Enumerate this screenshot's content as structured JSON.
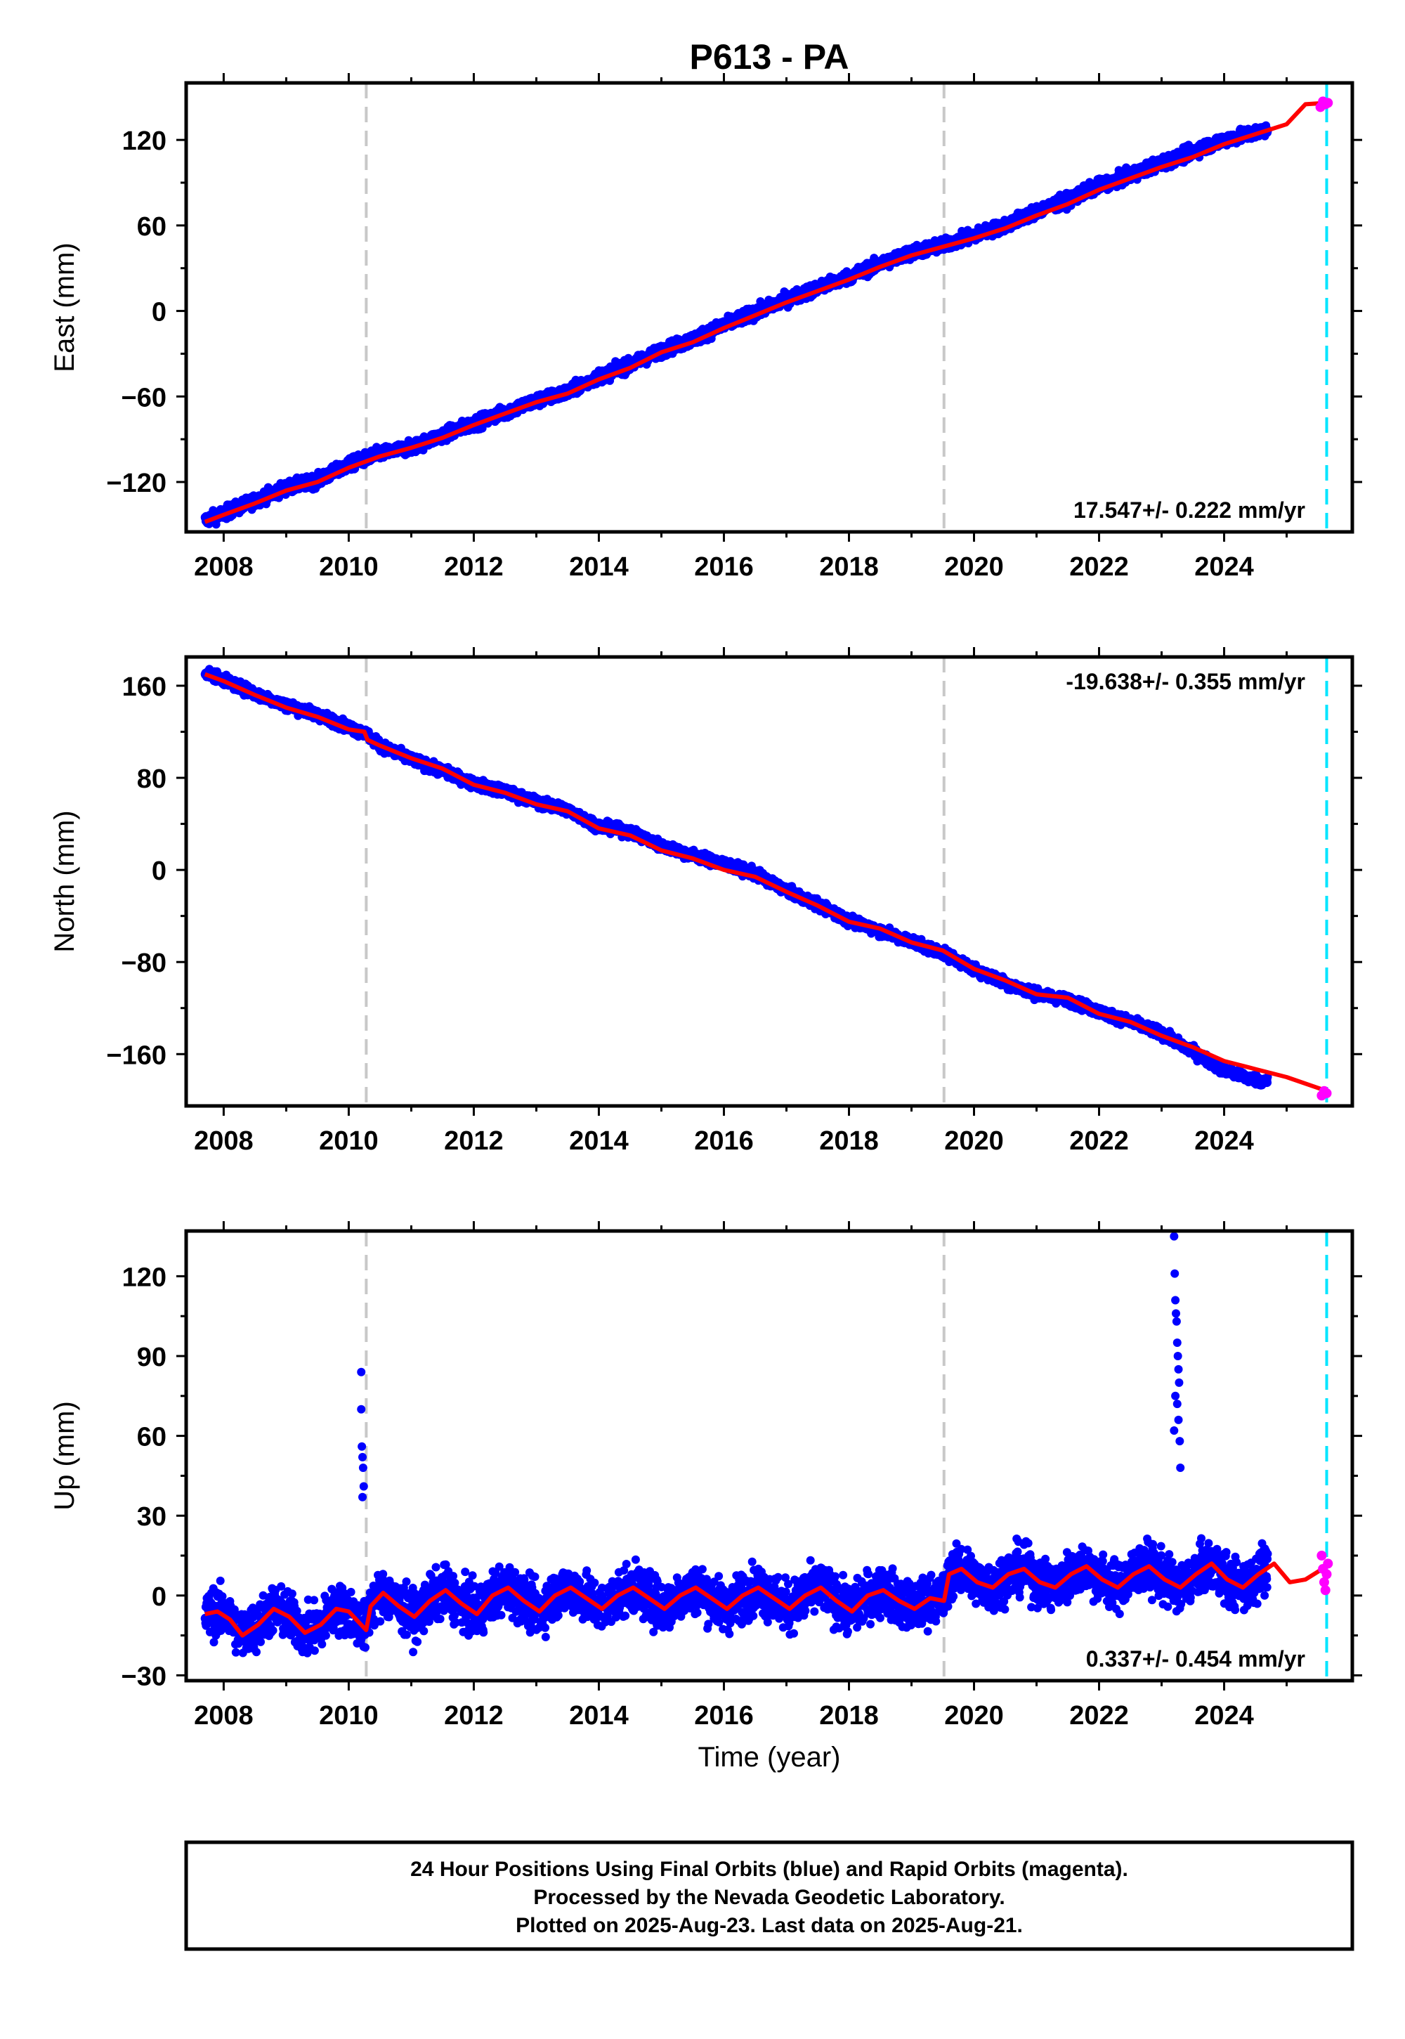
{
  "figure_title": "P613 - PA",
  "colors": {
    "final_orbits": "#0000ff",
    "rapid_orbits": "#ff00ff",
    "model": "#ff0000",
    "event_line": "#c8c8c8",
    "last_data_line": "#00e5ff",
    "frame": "#000000"
  },
  "chart_data": [
    {
      "type": "scatter",
      "component": "east",
      "ylabel": "East (mm)",
      "xlabel": "",
      "xlim": [
        2007.4,
        2026.05
      ],
      "ylim": [
        -155,
        160
      ],
      "yticks": [
        -120,
        -60,
        0,
        60,
        120
      ],
      "xticks": [
        2008,
        2010,
        2012,
        2014,
        2016,
        2018,
        2020,
        2022,
        2024
      ],
      "xtick_labels": [
        "2008",
        "2010",
        "2012",
        "2014",
        "2016",
        "2018",
        "2020",
        "2022",
        "2024"
      ],
      "rate_label": "17.547+/- 0.222 mm/yr",
      "rate_position": "bottom-right",
      "grid": false,
      "event_lines": [
        2010.28,
        2019.52
      ],
      "last_data_line": 2025.64,
      "final_orbit_data": {
        "x": [
          2007.7,
          2008.0,
          2008.5,
          2009.0,
          2009.5,
          2010.0,
          2010.25,
          2010.5,
          2011.0,
          2011.5,
          2012.0,
          2012.5,
          2013.0,
          2013.5,
          2014.0,
          2014.5,
          2015.0,
          2015.5,
          2016.0,
          2016.5,
          2017.0,
          2017.5,
          2018.0,
          2018.5,
          2019.0,
          2019.5,
          2020.0,
          2020.5,
          2021.0,
          2021.5,
          2022.0,
          2022.5,
          2023.0,
          2023.3,
          2023.5,
          2024.0,
          2024.4,
          2024.7
        ],
        "y": [
          -147,
          -142,
          -133,
          -124,
          -119,
          -108,
          -104,
          -100,
          -96,
          -87,
          -79,
          -71,
          -63,
          -57,
          -46,
          -38,
          -28,
          -20,
          -10,
          -1,
          8,
          16,
          24,
          33,
          41,
          46,
          53,
          60,
          70,
          78,
          88,
          95,
          104,
          108,
          112,
          120,
          124,
          127
        ]
      },
      "rapid_orbit_data": {
        "x": [
          2025.54,
          2025.58,
          2025.62,
          2025.66
        ],
        "y": [
          143,
          147,
          145,
          146
        ]
      },
      "model_curve": {
        "x": [
          2007.7,
          2008.0,
          2008.5,
          2009.0,
          2009.5,
          2010.0,
          2010.25,
          2010.5,
          2011.0,
          2011.5,
          2012.0,
          2012.5,
          2013.0,
          2013.5,
          2014.0,
          2014.5,
          2015.0,
          2015.5,
          2016.0,
          2016.5,
          2017.0,
          2017.5,
          2018.0,
          2018.5,
          2019.0,
          2019.5,
          2020.0,
          2020.5,
          2021.0,
          2021.5,
          2022.0,
          2022.5,
          2023.0,
          2023.5,
          2024.0,
          2024.5,
          2025.0,
          2025.3,
          2025.64
        ],
        "y": [
          -148,
          -143,
          -135,
          -126,
          -120,
          -110,
          -106,
          -102,
          -96,
          -89,
          -80,
          -72,
          -64,
          -58,
          -48,
          -40,
          -29,
          -22,
          -12,
          -3,
          6,
          14,
          22,
          31,
          39,
          45,
          51,
          58,
          67,
          75,
          85,
          93,
          101,
          108,
          117,
          124,
          131,
          145,
          146
        ]
      }
    },
    {
      "type": "scatter",
      "component": "north",
      "ylabel": "North (mm)",
      "xlabel": "",
      "xlim": [
        2007.4,
        2026.05
      ],
      "ylim": [
        -205,
        185
      ],
      "yticks": [
        -160,
        -80,
        0,
        80,
        160
      ],
      "xticks": [
        2008,
        2010,
        2012,
        2014,
        2016,
        2018,
        2020,
        2022,
        2024
      ],
      "xtick_labels": [
        "2008",
        "2010",
        "2012",
        "2014",
        "2016",
        "2018",
        "2020",
        "2022",
        "2024"
      ],
      "rate_label": "-19.638+/- 0.355 mm/yr",
      "rate_position": "top-right",
      "grid": false,
      "event_lines": [
        2010.28,
        2019.52
      ],
      "last_data_line": 2025.64,
      "final_orbit_data": {
        "x": [
          2007.7,
          2008.0,
          2008.5,
          2009.0,
          2009.5,
          2010.0,
          2010.25,
          2010.5,
          2011.0,
          2011.5,
          2012.0,
          2012.5,
          2013.0,
          2013.5,
          2014.0,
          2014.5,
          2015.0,
          2015.5,
          2016.0,
          2016.5,
          2017.0,
          2017.5,
          2018.0,
          2018.5,
          2019.0,
          2019.5,
          2020.0,
          2020.5,
          2021.0,
          2021.5,
          2022.0,
          2022.5,
          2023.0,
          2023.5,
          2024.0,
          2024.4,
          2024.7
        ],
        "y": [
          172,
          165,
          153,
          143,
          135,
          124,
          119,
          108,
          96,
          86,
          75,
          68,
          59,
          52,
          38,
          33,
          21,
          13,
          5,
          -3,
          -18,
          -30,
          -44,
          -53,
          -62,
          -72,
          -86,
          -98,
          -108,
          -113,
          -123,
          -132,
          -142,
          -158,
          -174,
          -181,
          -184
        ]
      },
      "rapid_orbit_data": {
        "x": [
          2025.56,
          2025.6,
          2025.64
        ],
        "y": [
          -196,
          -192,
          -194
        ]
      },
      "model_curve": {
        "x": [
          2007.7,
          2008.0,
          2008.5,
          2009.0,
          2009.5,
          2010.0,
          2010.25,
          2010.3,
          2010.5,
          2011.0,
          2011.5,
          2012.0,
          2012.5,
          2013.0,
          2013.5,
          2014.0,
          2014.5,
          2015.0,
          2015.5,
          2016.0,
          2016.5,
          2017.0,
          2017.5,
          2018.0,
          2018.5,
          2019.0,
          2019.5,
          2020.0,
          2020.5,
          2021.0,
          2021.5,
          2022.0,
          2022.5,
          2023.0,
          2023.5,
          2024.0,
          2024.5,
          2025.0,
          2025.64
        ],
        "y": [
          170,
          164,
          152,
          141,
          133,
          122,
          120,
          113,
          108,
          97,
          88,
          74,
          67,
          57,
          51,
          36,
          30,
          17,
          10,
          0,
          -6,
          -19,
          -31,
          -45,
          -51,
          -63,
          -70,
          -86,
          -96,
          -108,
          -111,
          -125,
          -132,
          -144,
          -154,
          -166,
          -173,
          -180,
          -192
        ]
      }
    },
    {
      "type": "scatter",
      "component": "up",
      "ylabel": "Up (mm)",
      "xlabel": "Time (year)",
      "xlim": [
        2007.4,
        2026.05
      ],
      "ylim": [
        -32,
        137
      ],
      "yticks": [
        -30,
        0,
        30,
        60,
        90,
        120
      ],
      "xticks": [
        2008,
        2010,
        2012,
        2014,
        2016,
        2018,
        2020,
        2022,
        2024
      ],
      "xtick_labels": [
        "2008",
        "2010",
        "2012",
        "2014",
        "2016",
        "2018",
        "2020",
        "2022",
        "2024"
      ],
      "rate_label": "0.337+/- 0.454 mm/yr",
      "rate_position": "bottom-right",
      "grid": false,
      "event_lines": [
        2010.28,
        2019.52
      ],
      "last_data_line": 2025.64,
      "final_orbit_band": {
        "x_start": 2007.7,
        "x_end": 2024.7,
        "scatter_halfwidth_mm": 9
      },
      "final_orbit_outliers": {
        "x": [
          2010.2,
          2010.2,
          2010.21,
          2010.22,
          2010.23,
          2010.24,
          2010.22,
          2023.2,
          2023.21,
          2023.22,
          2023.23,
          2023.24,
          2023.25,
          2023.26,
          2023.27,
          2023.28,
          2023.22,
          2023.25,
          2023.27,
          2023.2,
          2023.29,
          2023.3
        ],
        "y": [
          84,
          70,
          56,
          52,
          48,
          41,
          37,
          135,
          121,
          111,
          106,
          103,
          95,
          90,
          85,
          80,
          75,
          72,
          66,
          62,
          58,
          48
        ]
      },
      "rapid_orbit_data": {
        "x": [
          2025.56,
          2025.58,
          2025.6,
          2025.62,
          2025.64,
          2025.66
        ],
        "y": [
          15,
          10,
          5,
          2,
          8,
          12
        ]
      },
      "model_curve": {
        "x": [
          2007.7,
          2007.9,
          2008.1,
          2008.3,
          2008.55,
          2008.8,
          2009.05,
          2009.3,
          2009.55,
          2009.8,
          2010.0,
          2010.2,
          2010.28,
          2010.35,
          2010.55,
          2010.8,
          2011.05,
          2011.3,
          2011.55,
          2011.8,
          2012.05,
          2012.3,
          2012.55,
          2012.8,
          2013.05,
          2013.3,
          2013.55,
          2013.8,
          2014.05,
          2014.3,
          2014.55,
          2014.8,
          2015.05,
          2015.3,
          2015.55,
          2015.8,
          2016.05,
          2016.3,
          2016.55,
          2016.8,
          2017.05,
          2017.3,
          2017.55,
          2017.8,
          2018.05,
          2018.3,
          2018.55,
          2018.8,
          2019.05,
          2019.3,
          2019.52,
          2019.6,
          2019.8,
          2020.05,
          2020.3,
          2020.55,
          2020.8,
          2021.05,
          2021.3,
          2021.55,
          2021.8,
          2022.05,
          2022.3,
          2022.55,
          2022.8,
          2023.05,
          2023.3,
          2023.55,
          2023.8,
          2024.05,
          2024.3,
          2024.55,
          2024.8,
          2025.05,
          2025.3,
          2025.64
        ],
        "y": [
          -7,
          -6,
          -9,
          -15,
          -11,
          -5,
          -8,
          -14,
          -11,
          -5,
          -6,
          -11,
          -13,
          -4,
          1,
          -4,
          -8,
          -2,
          2,
          -3,
          -7,
          0,
          3,
          -2,
          -6,
          0,
          3,
          -1,
          -5,
          0,
          3,
          -1,
          -5,
          0,
          3,
          -1,
          -5,
          0,
          3,
          -1,
          -5,
          0,
          3,
          -2,
          -6,
          0,
          2,
          -2,
          -5,
          -1,
          -2,
          8,
          10,
          5,
          3,
          8,
          10,
          5,
          3,
          8,
          11,
          6,
          3,
          8,
          11,
          6,
          3,
          8,
          12,
          6,
          3,
          8,
          12,
          5,
          6,
          11
        ]
      }
    }
  ],
  "footer": {
    "line1": "24 Hour Positions Using Final Orbits (blue) and Rapid Orbits (magenta).",
    "line2": "Processed by the Nevada Geodetic Laboratory.",
    "line3": "Plotted on 2025-Aug-23. Last data on 2025-Aug-21."
  }
}
